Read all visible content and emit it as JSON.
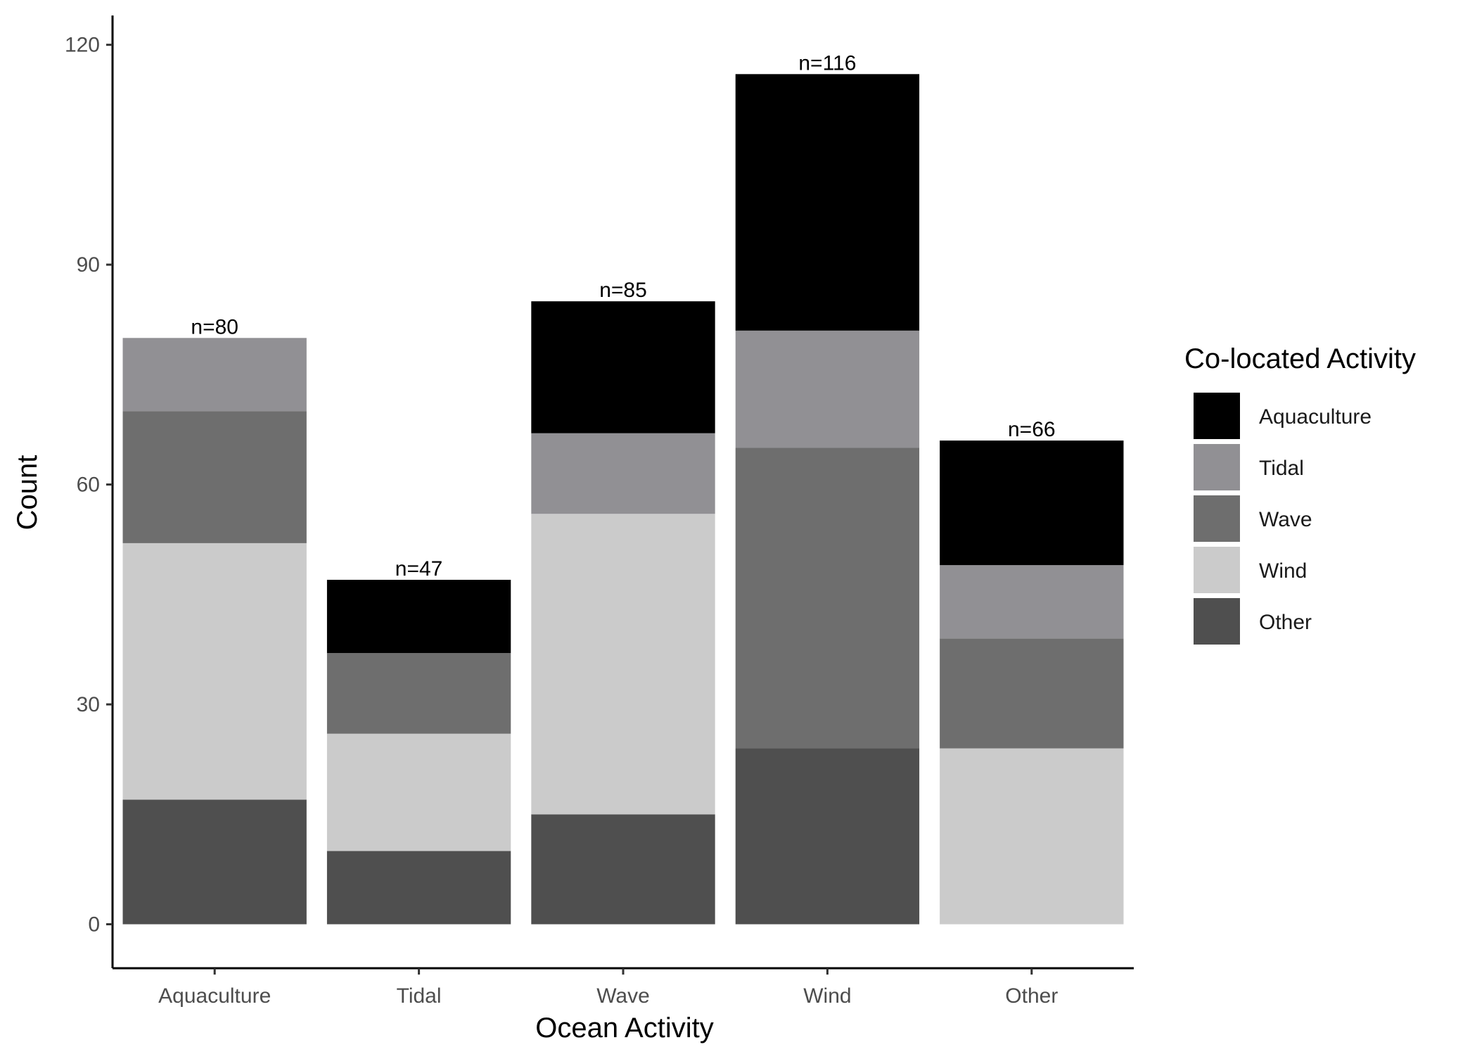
{
  "chart_data": {
    "type": "bar",
    "stacked": true,
    "title": "",
    "xlabel": "Ocean Activity",
    "ylabel": "Count",
    "ylim": [
      -6,
      124
    ],
    "yticks": [
      0,
      30,
      60,
      90,
      120
    ],
    "grid": false,
    "categories": [
      "Aquaculture",
      "Tidal",
      "Wave",
      "Wind",
      "Other"
    ],
    "series": [
      {
        "name": "Other",
        "color": "#4f4f4f",
        "values": [
          17,
          10,
          15,
          24,
          0
        ]
      },
      {
        "name": "Wind",
        "color": "#cbcbcb",
        "values": [
          35,
          16,
          41,
          0,
          24
        ]
      },
      {
        "name": "Wave",
        "color": "#6e6e6e",
        "values": [
          18,
          11,
          0,
          41,
          15
        ]
      },
      {
        "name": "Tidal",
        "color": "#919094",
        "values": [
          10,
          0,
          11,
          16,
          10
        ]
      },
      {
        "name": "Aquaculture",
        "color": "#000000",
        "values": [
          0,
          10,
          18,
          35,
          17
        ]
      }
    ],
    "totals_labels": [
      "n=80",
      "n=47",
      "n=85",
      "n=116",
      "n=66"
    ],
    "legend": {
      "title": "Co-located Activity",
      "position": "right",
      "items": [
        {
          "label": "Aquaculture",
          "color": "#000000"
        },
        {
          "label": "Tidal",
          "color": "#919094"
        },
        {
          "label": "Wave",
          "color": "#6e6e6e"
        },
        {
          "label": "Wind",
          "color": "#cbcbcb"
        },
        {
          "label": "Other",
          "color": "#4f4f4f"
        }
      ]
    }
  }
}
